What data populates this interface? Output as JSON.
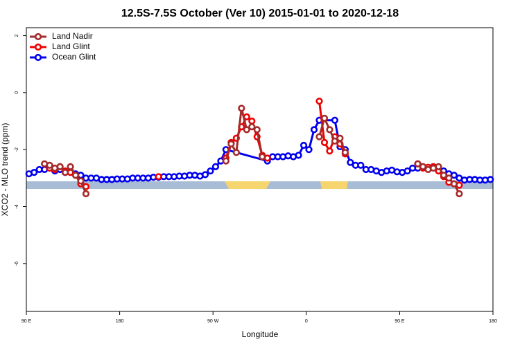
{
  "chart_data": {
    "type": "line",
    "title": "12.5S-7.5S October (Ver 10)   2015-01-01 to 2020-12-18",
    "x_label": "Longitude",
    "y_label": "XCO2 - MLO trend (ppm)",
    "xlim": [
      90,
      540
    ],
    "ylim": [
      -7.68,
      2.28
    ],
    "xticks": [
      {
        "value": 90,
        "label": "90 E"
      },
      180,
      {
        "value": 270,
        "label": "90 W"
      },
      {
        "value": 360,
        "label": "0"
      },
      {
        "value": 450,
        "label": "90 E"
      },
      180
    ],
    "yticks": [
      2,
      0,
      -2,
      -4,
      -6
    ],
    "legend": "top-left",
    "series": [
      {
        "name": "Land Nadir",
        "color": "#a52a2a",
        "x": [
          107.5,
          112.5,
          117.5,
          122.5,
          127.5,
          132.5,
          137.5,
          142.5,
          147.5,
          152.5,
          282.5,
          287.5,
          292.5,
          297.5,
          302.5,
          307.5,
          312.5,
          317.5,
          322.5,
          372.5,
          377.5,
          382.5,
          387.5,
          392.5,
          397.5,
          402.5,
          467.5,
          472.5,
          477.5,
          482.5,
          487.5,
          492.5,
          497.5,
          502.5,
          507.5
        ],
        "values": [
          -2.5,
          -2.55,
          -2.65,
          -2.6,
          -2.8,
          -2.6,
          -2.9,
          -3.1,
          -3.55,
          null,
          -2.4,
          -1.8,
          -2.1,
          -0.55,
          -1.3,
          -1.2,
          -1.3,
          -2.25,
          null,
          -1.55,
          -0.9,
          -1.3,
          -1.7,
          -1.6,
          -2.1,
          null,
          -2.5,
          -2.6,
          -2.7,
          -2.65,
          -2.6,
          -2.9,
          -3.0,
          -3.2,
          -3.55
        ]
      },
      {
        "name": "Land Glint",
        "color": "#ee0000",
        "x": [
          112.5,
          117.5,
          122.5,
          127.5,
          132.5,
          137.5,
          142.5,
          147.5,
          152.5,
          217.5,
          222.5,
          282.5,
          287.5,
          292.5,
          297.5,
          302.5,
          307.5,
          312.5,
          317.5,
          322.5,
          327.5,
          372.5,
          377.5,
          382.5,
          387.5,
          392.5,
          397.5,
          402.5,
          467.5,
          472.5,
          477.5,
          482.5,
          487.5,
          492.5,
          497.5,
          502.5,
          507.5
        ],
        "values": [
          -2.65,
          -2.7,
          -2.6,
          -2.75,
          -2.8,
          -2.9,
          -3.2,
          -3.3,
          null,
          -2.95,
          null,
          -2.3,
          -1.75,
          -1.6,
          -1.2,
          -0.85,
          -1.0,
          -1.55,
          -2.2,
          -2.3,
          null,
          -0.3,
          -1.75,
          -2.05,
          -1.55,
          -1.8,
          -2.15,
          null,
          -2.5,
          -2.65,
          -2.62,
          -2.6,
          -2.75,
          -2.95,
          -3.15,
          -3.2,
          -3.25
        ]
      },
      {
        "name": "Ocean Glint",
        "color": "#0000ee",
        "x": [
          92.5,
          97.5,
          102.5,
          107.5,
          112.5,
          117.5,
          122.5,
          127.5,
          132.5,
          137.5,
          142.5,
          147.5,
          152.5,
          157.5,
          162.5,
          167.5,
          172.5,
          177.5,
          182.5,
          187.5,
          192.5,
          197.5,
          202.5,
          207.5,
          212.5,
          217.5,
          222.5,
          227.5,
          232.5,
          237.5,
          242.5,
          247.5,
          252.5,
          257.5,
          262.5,
          267.5,
          272.5,
          277.5,
          282.5,
          322.5,
          327.5,
          332.5,
          337.5,
          342.5,
          347.5,
          352.5,
          357.5,
          362.5,
          367.5,
          372.5,
          387.5,
          392.5,
          397.5,
          402.5,
          407.5,
          412.5,
          417.5,
          422.5,
          427.5,
          432.5,
          437.5,
          442.5,
          447.5,
          452.5,
          457.5,
          462.5,
          467.5,
          472.5,
          477.5,
          482.5,
          487.5,
          492.5,
          497.5,
          502.5,
          507.5,
          512.5,
          517.5,
          522.5,
          527.5,
          532.5,
          537.5
        ],
        "values": [
          -2.85,
          -2.8,
          -2.7,
          -2.7,
          -2.65,
          -2.75,
          -2.7,
          -2.8,
          -2.75,
          -2.85,
          -2.9,
          -3,
          -3,
          -3,
          -3.05,
          -3.05,
          -3.05,
          -3.03,
          -3.03,
          -3.03,
          -3,
          -3,
          -3,
          -3,
          -2.97,
          -2.97,
          -2.95,
          -2.95,
          -2.95,
          -2.93,
          -2.93,
          -2.9,
          -2.9,
          -2.93,
          -2.88,
          -2.75,
          -2.6,
          -2.4,
          -2.0,
          -2.4,
          -2.25,
          -2.25,
          -2.25,
          -2.22,
          -2.25,
          -2.2,
          -1.85,
          -2.0,
          -1.3,
          -0.97,
          -0.97,
          -1.9,
          -2.0,
          -2.45,
          -2.55,
          -2.55,
          -2.7,
          -2.7,
          -2.75,
          -2.8,
          -2.75,
          -2.72,
          -2.78,
          -2.8,
          -2.75,
          -2.65,
          -2.65,
          -2.6,
          -2.65,
          -2.6,
          -2.68,
          -2.75,
          -2.85,
          -2.9,
          -3.0,
          -3.07,
          -3.05,
          -3.05,
          -3.07,
          -3.07,
          -3.05
        ]
      }
    ]
  }
}
